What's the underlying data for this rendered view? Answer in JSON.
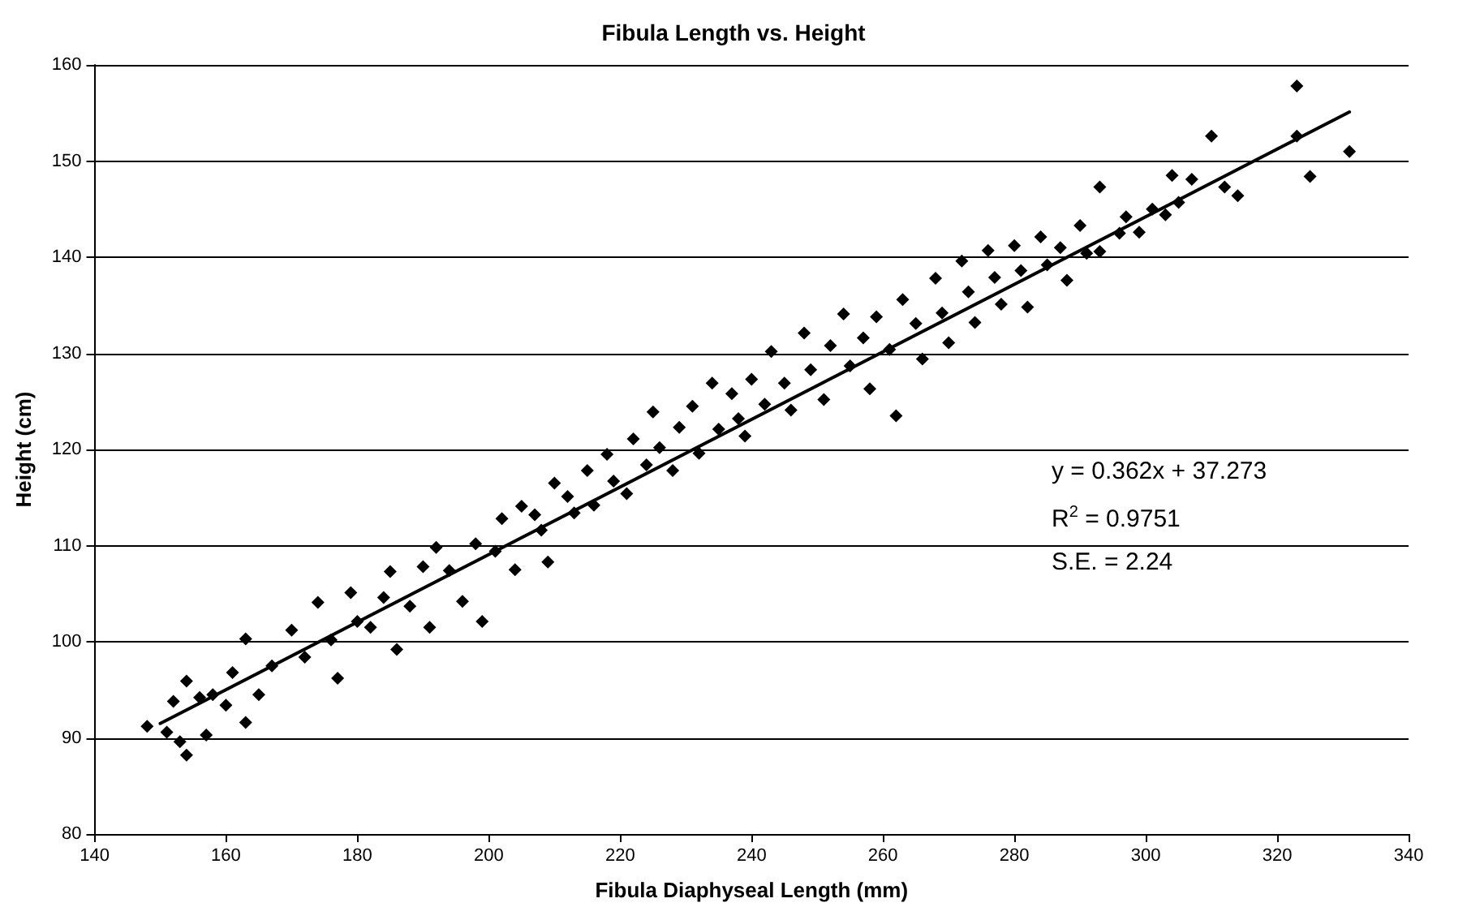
{
  "chart_data": {
    "type": "scatter",
    "title": "Fibula Length vs. Height",
    "xlabel": "Fibula Diaphyseal Length (mm)",
    "ylabel": "Height (cm)",
    "annotations": [
      "y = 0.362x + 37.273",
      "R$^{2}$ = 0.9751",
      "S.E. = 2.24"
    ],
    "xlim": [
      140,
      340
    ],
    "xticks": [
      140,
      160,
      180,
      200,
      220,
      240,
      260,
      280,
      300,
      320,
      340
    ],
    "ylim": [
      80,
      160
    ],
    "yticks": [
      80,
      90,
      100,
      110,
      120,
      130,
      140,
      150,
      160
    ],
    "grid": "y",
    "marker": "diamond",
    "series": [
      {
        "color": "#000000",
        "x": [
          148,
          151,
          152,
          154,
          154,
          153,
          157,
          156,
          158,
          160,
          161,
          163,
          163,
          165,
          167,
          170,
          172,
          174,
          176,
          177,
          179,
          180,
          182,
          184,
          185,
          186,
          188,
          190,
          191,
          192,
          194,
          196,
          198,
          199,
          201,
          202,
          204,
          205,
          207,
          208,
          209,
          210,
          212,
          213,
          215,
          216,
          218,
          219,
          221,
          222,
          224,
          225,
          226,
          228,
          229,
          231,
          232,
          234,
          235,
          237,
          238,
          239,
          240,
          242,
          243,
          245,
          246,
          248,
          249,
          251,
          252,
          254,
          255,
          257,
          258,
          259,
          261,
          262,
          263,
          265,
          266,
          268,
          269,
          270,
          272,
          273,
          274,
          276,
          277,
          278,
          280,
          281,
          282,
          284,
          285,
          287,
          288,
          290,
          291,
          293,
          293,
          296,
          297,
          299,
          301,
          303,
          304,
          305,
          307,
          310,
          312,
          314,
          323,
          323,
          325,
          331
        ],
        "values": [
          91.2,
          90.6,
          93.8,
          95.9,
          88.2,
          89.6,
          90.3,
          94.2,
          94.5,
          93.4,
          96.8,
          100.3,
          91.6,
          94.5,
          97.5,
          101.2,
          98.4,
          104.1,
          100.2,
          96.2,
          105.1,
          102.1,
          101.5,
          104.6,
          107.3,
          99.2,
          103.7,
          107.8,
          101.5,
          109.8,
          107.4,
          104.2,
          110.2,
          102.1,
          109.4,
          112.8,
          107.5,
          114.1,
          113.2,
          111.6,
          108.3,
          116.5,
          115.1,
          113.4,
          117.8,
          114.2,
          119.5,
          116.7,
          115.4,
          121.1,
          118.4,
          123.9,
          120.2,
          117.8,
          122.3,
          124.5,
          119.6,
          126.9,
          122.1,
          125.8,
          123.2,
          121.4,
          127.3,
          124.7,
          130.2,
          126.9,
          124.1,
          132.1,
          128.3,
          125.2,
          130.8,
          134.1,
          128.7,
          131.6,
          126.3,
          133.8,
          130.4,
          123.5,
          135.6,
          133.1,
          129.4,
          137.8,
          134.2,
          131.1,
          139.6,
          136.4,
          133.2,
          140.7,
          137.9,
          135.1,
          141.2,
          138.6,
          134.8,
          142.1,
          139.2,
          141.0,
          137.6,
          143.3,
          140.4,
          147.3,
          140.6,
          142.5,
          144.2,
          142.6,
          145.0,
          144.4,
          148.5,
          145.7,
          148.1,
          152.6,
          147.3,
          146.4,
          157.8,
          152.6,
          148.4,
          151.0
        ]
      },
      {
        "type": "line",
        "color": "#000000",
        "marker": "none",
        "x": [
          150,
          331
        ],
        "values": [
          91.5,
          155.1
        ]
      }
    ]
  }
}
